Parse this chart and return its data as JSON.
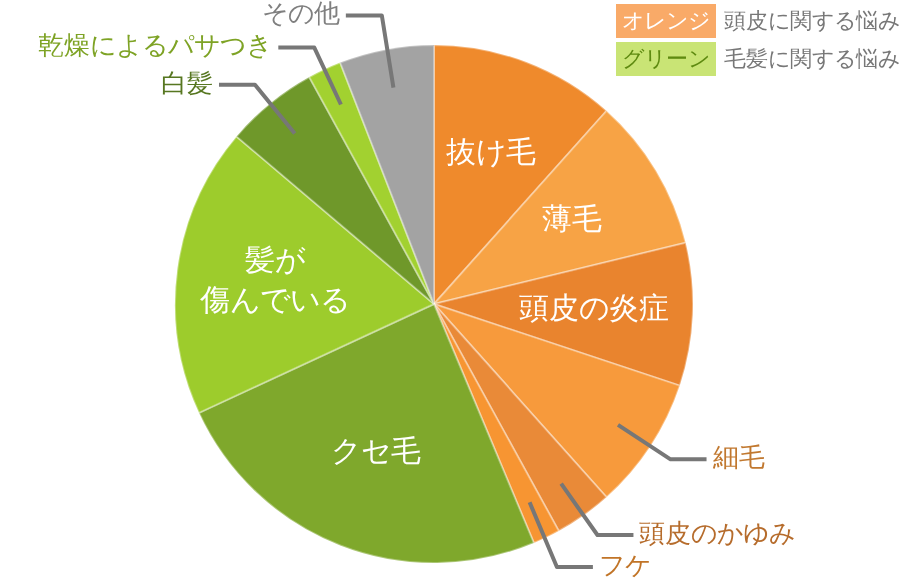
{
  "chart_data": {
    "type": "pie",
    "categories": [
      "抜け毛",
      "薄毛",
      "頭皮の炎症",
      "細毛",
      "頭皮のかゆみ",
      "フケ",
      "クセ毛",
      "髪が傷んでいる",
      "白髪",
      "乾燥によるパサつき",
      "その他"
    ],
    "values": [
      11.6,
      9.6,
      8.9,
      8.3,
      3.6,
      1.7,
      24.4,
      18.1,
      5.8,
      2.1,
      5.9
    ],
    "colors": [
      "#ef8a2c",
      "#f7a345",
      "#e9842e",
      "#f79a3c",
      "#e98a38",
      "#f79532",
      "#7fa82c",
      "#9dcc2c",
      "#6f982a",
      "#a2d130",
      "#a3a3a3"
    ],
    "annotations": [
      "オレンジ",
      "頭皮に関する悩み",
      "グリーン",
      "毛髪に関する悩み"
    ]
  }
}
